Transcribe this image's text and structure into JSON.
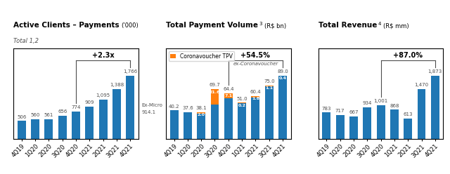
{
  "chart_data": [
    {
      "type": "bar",
      "title": "Active Clients – Payments",
      "unit": "(’000)",
      "subtitle": "Total 1,2",
      "categories": [
        "4Q19",
        "1Q20",
        "2Q20",
        "3Q20",
        "4Q20",
        "1Q21",
        "2Q21",
        "3Q21",
        "4Q21"
      ],
      "values": [
        506,
        560,
        561,
        656,
        774,
        909,
        1095,
        1388,
        1766
      ],
      "value_labels": [
        "506",
        "560",
        "561",
        "656",
        "774",
        "909",
        "1,095",
        "1,388",
        "1,766"
      ],
      "data_labels": true,
      "ylim": [
        0,
        2507.72
      ],
      "yticks": [],
      "tick_labels": "x",
      "annotations": [
        {
          "text": "+2.3x",
          "from": 4,
          "to": 8
        },
        {
          "text": "Ex-Micro",
          "at": 8
        },
        {
          "text": "914.1",
          "at": 8
        }
      ]
    },
    {
      "type": "bar",
      "stacked": true,
      "title": "Total Payment Volume",
      "footnote": "3",
      "unit": "(R$ bn)",
      "categories": [
        "4Q19",
        "1Q20",
        "2Q20",
        "3Q20",
        "4Q20",
        "1Q21",
        "2Q21",
        "3Q21",
        "4Q21"
      ],
      "series": [
        {
          "values": [
            40.2,
            37.6,
            36.1,
            48.1,
            57.3,
            50.8,
            58.6,
            73.9,
            88.6
          ],
          "data_labels": false
        },
        {
          "name": "Coronavoucher TPV",
          "values": [
            0,
            0,
            2.0,
            21.6,
            7.1,
            0.2,
            1.8,
            1.1,
            0.4
          ],
          "value_labels": [
            null,
            null,
            "2.0",
            "21.6",
            "7.1",
            "0.2",
            "1.8",
            "1.1",
            "0.4"
          ],
          "data_labels": true
        }
      ],
      "totals": [
        40.2,
        37.6,
        38.1,
        69.7,
        64.4,
        51.0,
        60.4,
        75.0,
        89.0
      ],
      "legend": "upper left",
      "ylim": [
        0,
        126.38
      ],
      "yticks": [],
      "tick_labels": "x",
      "annotations": [
        {
          "text": "+54.5%",
          "note": "ex-Coronavoucher",
          "from": 4,
          "to": 8
        }
      ]
    },
    {
      "type": "bar",
      "title": "Total Revenue",
      "footnote": "4",
      "unit": "(R$ mm)",
      "categories": [
        "4Q19",
        "1Q20",
        "2Q20",
        "3Q20",
        "4Q20",
        "1Q21",
        "2Q21",
        "3Q21",
        "4Q21"
      ],
      "values": [
        783,
        717,
        667,
        934,
        1001,
        868,
        613,
        1470,
        1873
      ],
      "value_labels": [
        "783",
        "717",
        "667",
        "934",
        "1,001",
        "868",
        "613",
        "1,470",
        "1,873"
      ],
      "data_labels": true,
      "ylim": [
        0,
        2659.66
      ],
      "yticks": [],
      "tick_labels": "x",
      "annotations": [
        {
          "text": "+87.0%",
          "from": 4,
          "to": 8
        }
      ]
    }
  ]
}
